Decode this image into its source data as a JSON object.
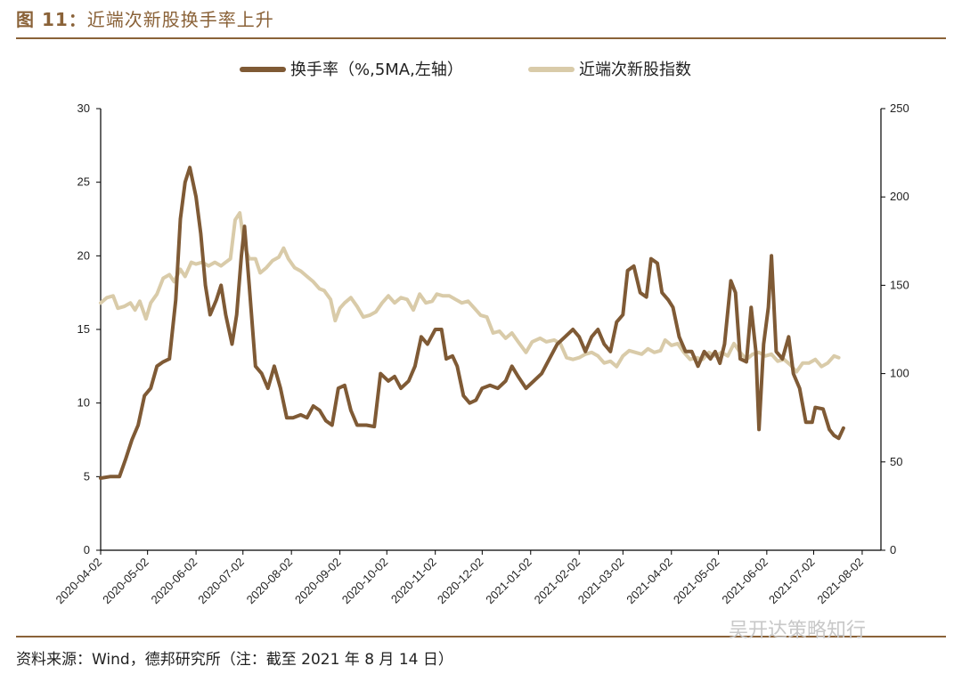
{
  "figure": {
    "label": "图 11：",
    "title": "近端次新股换手率上升"
  },
  "source_note": "资料来源：Wind，德邦研究所（注：截至 2021 年 8 月 14 日）",
  "watermark": "吴开达策略知行",
  "colors": {
    "accent": "#8a6238",
    "turnover": "#7f5a35",
    "index": "#d9cba9"
  },
  "chart_data": {
    "type": "line",
    "x_tick_labels": [
      "2020-04-02",
      "2020-05-02",
      "2020-06-02",
      "2020-07-02",
      "2020-08-02",
      "2020-09-02",
      "2020-10-02",
      "2020-11-02",
      "2020-12-02",
      "2021-01-02",
      "2021-02-02",
      "2021-03-02",
      "2021-04-02",
      "2021-05-02",
      "2021-06-02",
      "2021-07-02",
      "2021-08-02"
    ],
    "y_left": {
      "range": [
        0,
        30
      ],
      "ticks": [
        0,
        5,
        10,
        15,
        20,
        25,
        30
      ]
    },
    "y_right": {
      "range": [
        0,
        250
      ],
      "ticks": [
        0,
        50,
        100,
        150,
        200,
        250
      ]
    },
    "legend_placement": "top-center",
    "grid": false,
    "series": [
      {
        "name": "换手率（%,5MA,左轴）",
        "axis": "left",
        "color": "#7f5a35",
        "points": [
          [
            "2020-04-02",
            4.9
          ],
          [
            "2020-04-08",
            5.0
          ],
          [
            "2020-04-14",
            5.0
          ],
          [
            "2020-04-18",
            6.2
          ],
          [
            "2020-04-22",
            7.5
          ],
          [
            "2020-04-26",
            8.5
          ],
          [
            "2020-04-30",
            10.5
          ],
          [
            "2020-05-04",
            11.0
          ],
          [
            "2020-05-08",
            12.5
          ],
          [
            "2020-05-12",
            12.8
          ],
          [
            "2020-05-16",
            13.0
          ],
          [
            "2020-05-20",
            17.0
          ],
          [
            "2020-05-23",
            22.5
          ],
          [
            "2020-05-26",
            25.0
          ],
          [
            "2020-05-29",
            26.0
          ],
          [
            "2020-06-02",
            24.0
          ],
          [
            "2020-06-05",
            21.5
          ],
          [
            "2020-06-08",
            18.0
          ],
          [
            "2020-06-11",
            16.0
          ],
          [
            "2020-06-15",
            17.0
          ],
          [
            "2020-06-18",
            18.0
          ],
          [
            "2020-06-21",
            16.0
          ],
          [
            "2020-06-25",
            14.0
          ],
          [
            "2020-06-28",
            16.0
          ],
          [
            "2020-07-01",
            20.0
          ],
          [
            "2020-07-03",
            22.0
          ],
          [
            "2020-07-06",
            18.0
          ],
          [
            "2020-07-10",
            12.5
          ],
          [
            "2020-07-14",
            12.0
          ],
          [
            "2020-07-18",
            11.0
          ],
          [
            "2020-07-22",
            12.5
          ],
          [
            "2020-07-26",
            11.0
          ],
          [
            "2020-07-30",
            9.0
          ],
          [
            "2020-08-03",
            9.0
          ],
          [
            "2020-08-08",
            9.2
          ],
          [
            "2020-08-12",
            9.0
          ],
          [
            "2020-08-16",
            9.8
          ],
          [
            "2020-08-20",
            9.5
          ],
          [
            "2020-08-24",
            8.8
          ],
          [
            "2020-08-28",
            8.5
          ],
          [
            "2020-09-01",
            11.0
          ],
          [
            "2020-09-05",
            11.2
          ],
          [
            "2020-09-09",
            9.5
          ],
          [
            "2020-09-13",
            8.5
          ],
          [
            "2020-09-19",
            8.5
          ],
          [
            "2020-09-24",
            8.4
          ],
          [
            "2020-09-28",
            12.0
          ],
          [
            "2020-10-03",
            11.5
          ],
          [
            "2020-10-07",
            11.8
          ],
          [
            "2020-10-11",
            11.0
          ],
          [
            "2020-10-16",
            11.5
          ],
          [
            "2020-10-20",
            12.5
          ],
          [
            "2020-10-24",
            14.5
          ],
          [
            "2020-10-28",
            14.0
          ],
          [
            "2020-11-02",
            15.0
          ],
          [
            "2020-11-06",
            15.0
          ],
          [
            "2020-11-09",
            13.0
          ],
          [
            "2020-11-13",
            13.2
          ],
          [
            "2020-11-16",
            12.5
          ],
          [
            "2020-11-20",
            10.5
          ],
          [
            "2020-11-24",
            10.0
          ],
          [
            "2020-11-28",
            10.2
          ],
          [
            "2020-12-02",
            11.0
          ],
          [
            "2020-12-07",
            11.2
          ],
          [
            "2020-12-12",
            11.0
          ],
          [
            "2020-12-17",
            11.5
          ],
          [
            "2020-12-21",
            12.5
          ],
          [
            "2020-12-25",
            11.8
          ],
          [
            "2020-12-30",
            11.0
          ],
          [
            "2021-01-04",
            11.5
          ],
          [
            "2021-01-09",
            12.0
          ],
          [
            "2021-01-14",
            13.0
          ],
          [
            "2021-01-19",
            14.0
          ],
          [
            "2021-01-24",
            14.5
          ],
          [
            "2021-01-29",
            15.0
          ],
          [
            "2021-02-02",
            14.5
          ],
          [
            "2021-02-06",
            13.5
          ],
          [
            "2021-02-10",
            14.5
          ],
          [
            "2021-02-14",
            15.0
          ],
          [
            "2021-02-18",
            14.0
          ],
          [
            "2021-02-22",
            13.5
          ],
          [
            "2021-02-26",
            15.5
          ],
          [
            "2021-03-02",
            16.0
          ],
          [
            "2021-03-05",
            19.0
          ],
          [
            "2021-03-09",
            19.3
          ],
          [
            "2021-03-13",
            17.5
          ],
          [
            "2021-03-17",
            17.2
          ],
          [
            "2021-03-20",
            19.8
          ],
          [
            "2021-03-24",
            19.5
          ],
          [
            "2021-03-27",
            17.5
          ],
          [
            "2021-03-31",
            17.0
          ],
          [
            "2021-04-03",
            16.5
          ],
          [
            "2021-04-07",
            14.5
          ],
          [
            "2021-04-11",
            13.5
          ],
          [
            "2021-04-15",
            13.5
          ],
          [
            "2021-04-19",
            12.5
          ],
          [
            "2021-04-23",
            13.5
          ],
          [
            "2021-04-27",
            13.0
          ],
          [
            "2021-04-30",
            13.5
          ],
          [
            "2021-05-03",
            12.7
          ],
          [
            "2021-05-06",
            14.0
          ],
          [
            "2021-05-10",
            18.3
          ],
          [
            "2021-05-13",
            17.5
          ],
          [
            "2021-05-16",
            13.0
          ],
          [
            "2021-05-20",
            12.8
          ],
          [
            "2021-05-23",
            16.5
          ],
          [
            "2021-05-26",
            13.5
          ],
          [
            "2021-05-28",
            8.2
          ],
          [
            "2021-05-31",
            14.0
          ],
          [
            "2021-06-03",
            16.5
          ],
          [
            "2021-06-05",
            20.0
          ],
          [
            "2021-06-08",
            13.5
          ],
          [
            "2021-06-12",
            13.0
          ],
          [
            "2021-06-16",
            14.5
          ],
          [
            "2021-06-19",
            12.0
          ],
          [
            "2021-06-23",
            11.0
          ],
          [
            "2021-06-27",
            8.7
          ],
          [
            "2021-07-01",
            8.7
          ],
          [
            "2021-07-03",
            9.7
          ],
          [
            "2021-07-08",
            9.6
          ],
          [
            "2021-07-12",
            8.2
          ],
          [
            "2021-07-15",
            7.8
          ],
          [
            "2021-07-18",
            7.6
          ],
          [
            "2021-07-21",
            8.3
          ]
        ]
      },
      {
        "name": "近端次新股指数",
        "axis": "right",
        "color": "#d9cba9",
        "points": [
          [
            "2020-04-02",
            140
          ],
          [
            "2020-04-06",
            143
          ],
          [
            "2020-04-10",
            144
          ],
          [
            "2020-04-13",
            137
          ],
          [
            "2020-04-17",
            138
          ],
          [
            "2020-04-21",
            140
          ],
          [
            "2020-04-24",
            136
          ],
          [
            "2020-04-27",
            141
          ],
          [
            "2020-05-01",
            131
          ],
          [
            "2020-05-04",
            140
          ],
          [
            "2020-05-08",
            145
          ],
          [
            "2020-05-12",
            154
          ],
          [
            "2020-05-16",
            156
          ],
          [
            "2020-05-19",
            152
          ],
          [
            "2020-05-23",
            159
          ],
          [
            "2020-05-26",
            155
          ],
          [
            "2020-05-30",
            163
          ],
          [
            "2020-06-02",
            162
          ],
          [
            "2020-06-06",
            163
          ],
          [
            "2020-06-10",
            161
          ],
          [
            "2020-06-14",
            163
          ],
          [
            "2020-06-18",
            161
          ],
          [
            "2020-06-21",
            163
          ],
          [
            "2020-06-24",
            165
          ],
          [
            "2020-06-27",
            187
          ],
          [
            "2020-06-30",
            191
          ],
          [
            "2020-07-03",
            172
          ],
          [
            "2020-07-06",
            165
          ],
          [
            "2020-07-10",
            165
          ],
          [
            "2020-07-13",
            157
          ],
          [
            "2020-07-17",
            160
          ],
          [
            "2020-07-21",
            164
          ],
          [
            "2020-07-25",
            166
          ],
          [
            "2020-07-28",
            171
          ],
          [
            "2020-07-31",
            165
          ],
          [
            "2020-08-04",
            160
          ],
          [
            "2020-08-08",
            158
          ],
          [
            "2020-08-12",
            155
          ],
          [
            "2020-08-16",
            152
          ],
          [
            "2020-08-20",
            148
          ],
          [
            "2020-08-23",
            147
          ],
          [
            "2020-08-27",
            142
          ],
          [
            "2020-08-30",
            130
          ],
          [
            "2020-09-02",
            137
          ],
          [
            "2020-09-05",
            140
          ],
          [
            "2020-09-09",
            143
          ],
          [
            "2020-09-13",
            138
          ],
          [
            "2020-09-17",
            132
          ],
          [
            "2020-09-21",
            133
          ],
          [
            "2020-09-25",
            135
          ],
          [
            "2020-09-29",
            140
          ],
          [
            "2020-10-03",
            144
          ],
          [
            "2020-10-07",
            140
          ],
          [
            "2020-10-11",
            143
          ],
          [
            "2020-10-15",
            142
          ],
          [
            "2020-10-19",
            136
          ],
          [
            "2020-10-23",
            145
          ],
          [
            "2020-10-27",
            140
          ],
          [
            "2020-10-31",
            141
          ],
          [
            "2020-11-03",
            145
          ],
          [
            "2020-11-07",
            144
          ],
          [
            "2020-11-11",
            144
          ],
          [
            "2020-11-15",
            142
          ],
          [
            "2020-11-19",
            140
          ],
          [
            "2020-11-23",
            141
          ],
          [
            "2020-11-27",
            137
          ],
          [
            "2020-12-01",
            133
          ],
          [
            "2020-12-05",
            132
          ],
          [
            "2020-12-09",
            123
          ],
          [
            "2020-12-13",
            124
          ],
          [
            "2020-12-17",
            120
          ],
          [
            "2020-12-21",
            123
          ],
          [
            "2020-12-25",
            118
          ],
          [
            "2020-12-30",
            112
          ],
          [
            "2021-01-03",
            118
          ],
          [
            "2021-01-08",
            120
          ],
          [
            "2021-01-12",
            118
          ],
          [
            "2021-01-17",
            119
          ],
          [
            "2021-01-21",
            117
          ],
          [
            "2021-01-25",
            109
          ],
          [
            "2021-01-29",
            108
          ],
          [
            "2021-02-02",
            109
          ],
          [
            "2021-02-06",
            111
          ],
          [
            "2021-02-10",
            112
          ],
          [
            "2021-02-14",
            110
          ],
          [
            "2021-02-18",
            106
          ],
          [
            "2021-02-22",
            107
          ],
          [
            "2021-02-26",
            104
          ],
          [
            "2021-03-02",
            110
          ],
          [
            "2021-03-06",
            113
          ],
          [
            "2021-03-10",
            112
          ],
          [
            "2021-03-14",
            111
          ],
          [
            "2021-03-18",
            114
          ],
          [
            "2021-03-22",
            112
          ],
          [
            "2021-03-26",
            113
          ],
          [
            "2021-03-29",
            119
          ],
          [
            "2021-04-02",
            116
          ],
          [
            "2021-04-06",
            117
          ],
          [
            "2021-04-10",
            112
          ],
          [
            "2021-04-14",
            108
          ],
          [
            "2021-04-18",
            109
          ],
          [
            "2021-04-22",
            108
          ],
          [
            "2021-04-26",
            112
          ],
          [
            "2021-04-30",
            110
          ],
          [
            "2021-05-04",
            112
          ],
          [
            "2021-05-08",
            110
          ],
          [
            "2021-05-12",
            117
          ],
          [
            "2021-05-16",
            112
          ],
          [
            "2021-05-20",
            108
          ],
          [
            "2021-05-24",
            111
          ],
          [
            "2021-05-28",
            112
          ],
          [
            "2021-06-01",
            110
          ],
          [
            "2021-06-05",
            111
          ],
          [
            "2021-06-09",
            107
          ],
          [
            "2021-06-13",
            108
          ],
          [
            "2021-06-17",
            105
          ],
          [
            "2021-06-21",
            101
          ],
          [
            "2021-06-25",
            106
          ],
          [
            "2021-06-29",
            106
          ],
          [
            "2021-07-03",
            108
          ],
          [
            "2021-07-07",
            104
          ],
          [
            "2021-07-11",
            106
          ],
          [
            "2021-07-15",
            110
          ],
          [
            "2021-07-18",
            109
          ]
        ]
      }
    ]
  }
}
